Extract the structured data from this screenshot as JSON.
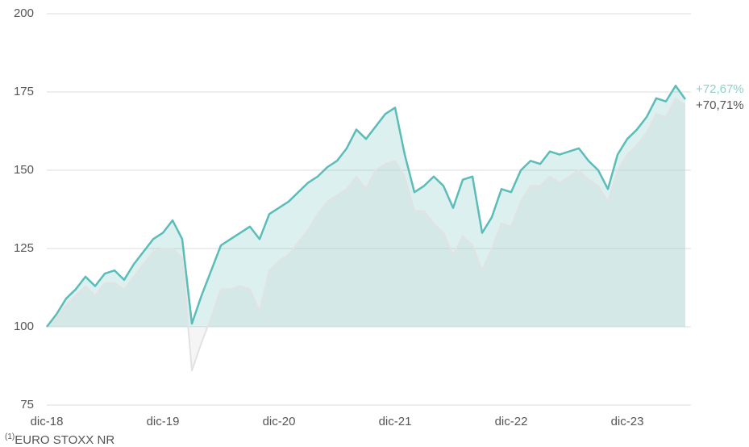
{
  "chart_data": {
    "type": "line",
    "categories": [
      "dic-18",
      null,
      null,
      null,
      null,
      null,
      null,
      null,
      null,
      null,
      null,
      null,
      "dic-19",
      null,
      null,
      null,
      null,
      null,
      null,
      null,
      null,
      null,
      null,
      null,
      "dic-20",
      null,
      null,
      null,
      null,
      null,
      null,
      null,
      null,
      null,
      null,
      null,
      "dic-21",
      null,
      null,
      null,
      null,
      null,
      null,
      null,
      null,
      null,
      null,
      null,
      "dic-22",
      null,
      null,
      null,
      null,
      null,
      null,
      null,
      null,
      null,
      null,
      null,
      "dic-23",
      null,
      null,
      null,
      null,
      null,
      null
    ],
    "series": [
      {
        "color": "#e2e2e2",
        "values": [
          100,
          103,
          107,
          110,
          113,
          110,
          114,
          114,
          112,
          116,
          120,
          124,
          125,
          125,
          122,
          86,
          95,
          103,
          112,
          112,
          113,
          112,
          105,
          118,
          121,
          123,
          127,
          131,
          136,
          140,
          142,
          144,
          148,
          144,
          150,
          152,
          153,
          148,
          137,
          137,
          133,
          130,
          123,
          129,
          126,
          118,
          125,
          133,
          132,
          140,
          145,
          145,
          148,
          146,
          148,
          150,
          147,
          145,
          140,
          150,
          155,
          158,
          162,
          168,
          167,
          173,
          170.71
        ]
      },
      {
        "color": "#5bbcb8",
        "values": [
          100,
          104,
          109,
          112,
          116,
          113,
          117,
          118,
          115,
          120,
          124,
          128,
          130,
          134,
          128,
          101,
          110,
          118,
          126,
          128,
          130,
          132,
          128,
          136,
          138,
          140,
          143,
          146,
          148,
          151,
          153,
          157,
          163,
          160,
          164,
          168,
          170,
          155,
          143,
          145,
          148,
          145,
          138,
          147,
          148,
          130,
          135,
          144,
          143,
          150,
          153,
          152,
          156,
          155,
          156,
          157,
          153,
          150,
          144,
          155,
          160,
          163,
          167,
          173,
          172,
          177,
          172.67
        ]
      }
    ],
    "annotations": [
      {
        "text": "+72,67%",
        "color": "#8fd0cc"
      },
      {
        "text": "+70,71%",
        "color": "#555555"
      }
    ],
    "ylim": [
      75,
      200
    ],
    "yticks": [
      75,
      100,
      125,
      150,
      175,
      200
    ],
    "grid": true,
    "baseline": 100,
    "footnote_mark": "(1)",
    "footnote": "EURO STOXX NR"
  }
}
